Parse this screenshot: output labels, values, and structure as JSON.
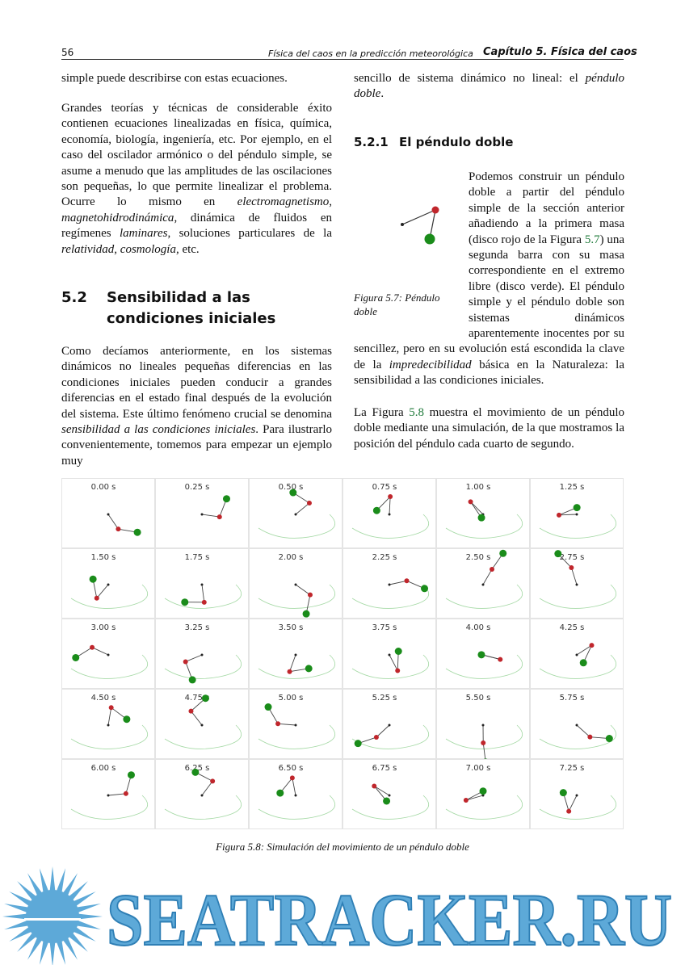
{
  "header": {
    "page_number": "56",
    "running_title": "Física del caos en la predicción meteorológica",
    "chapter": "Capítulo 5. Física del caos"
  },
  "left_column": {
    "p1": [
      "simple puede describirse con estas ecuaciones."
    ],
    "p2": [
      "Grandes teorías y técnicas de considerable éxito contienen ecuaciones linealizadas en física, química, economía, biología, ingeniería, etc. Por ejemplo, en el caso del oscilador armónico o del péndulo simple, se asume a menudo que las amplitudes de las oscilaciones son pequeñas, lo que permite linealizar el problema. Ocurre lo mismo en ",
      {
        "text": "electromagnetismo",
        "style": "italic"
      },
      ", ",
      {
        "text": "magnetohidrodinámica",
        "style": "italic"
      },
      ", dinámica de fluidos en regímenes ",
      {
        "text": "laminares",
        "style": "italic"
      },
      ", soluciones particulares de la ",
      {
        "text": "relatividad",
        "style": "italic"
      },
      ", ",
      {
        "text": "cosmología",
        "style": "italic"
      },
      ", etc."
    ],
    "section": {
      "number": "5.2",
      "title": "Sensibilidad a las condiciones iniciales"
    },
    "p3": [
      "Como decíamos anteriormente, en los sistemas dinámicos no lineales pequeñas diferencias en las condiciones iniciales pueden conducir a grandes diferencias en el estado final después de la evolución del sistema. Este último fenómeno crucial se denomina ",
      {
        "text": "sensibilidad a las condiciones iniciales",
        "style": "italic"
      },
      ". Para ilustrarlo convenientemente, tomemos para empezar un ejemplo muy"
    ]
  },
  "right_column": {
    "p4": [
      "sencillo de sistema dinámico no lineal: el ",
      {
        "text": "péndulo doble",
        "style": "italic"
      },
      "."
    ],
    "subsection": {
      "number": "5.2.1",
      "title": "El péndulo doble"
    },
    "figure_5_7": {
      "caption": "Figura 5.7: Péndulo doble"
    },
    "p5": [
      "Podemos construir un péndulo doble a partir del péndulo simple de la sección anterior añadiendo a la primera masa (disco rojo de la Figura ",
      {
        "text": "5.7",
        "style": "ref"
      },
      ") una segunda barra con su masa correspondiente en el extremo libre (disco verde). El péndulo simple y el péndulo doble son sistemas dinámicos aparentemente inocentes por su sencillez, pero en su evolución está escondida la clave de la ",
      {
        "text": "impredecibilidad",
        "style": "italic"
      },
      " básica en la Naturaleza: la sensibilidad a las condiciones iniciales."
    ],
    "p6": [
      "La Figura ",
      {
        "text": "5.8",
        "style": "ref"
      },
      " muestra el movimiento de un péndulo doble mediante una simulación, de la que mostramos la posición del péndulo cada cuarto de segundo."
    ]
  },
  "figure_5_8": {
    "panels": [
      "0.00 s",
      "0.25 s",
      "0.50 s",
      "0.75 s",
      "1.00 s",
      "1.25 s",
      "1.50 s",
      "1.75 s",
      "2.00 s",
      "2.25 s",
      "2.50 s",
      "2.75 s",
      "3.00 s",
      "3.25 s",
      "3.50 s",
      "3.75 s",
      "4.00 s",
      "4.25 s",
      "4.50 s",
      "4.75 s",
      "5.00 s",
      "5.25 s",
      "5.50 s",
      "5.75 s",
      "6.00 s",
      "6.25 s",
      "6.50 s",
      "6.75 s",
      "7.00 s",
      "7.25 s"
    ],
    "caption": "Figura 5.8: Simulación del movimiento de un péndulo doble"
  },
  "watermark": "SEATRACKER.RU"
}
